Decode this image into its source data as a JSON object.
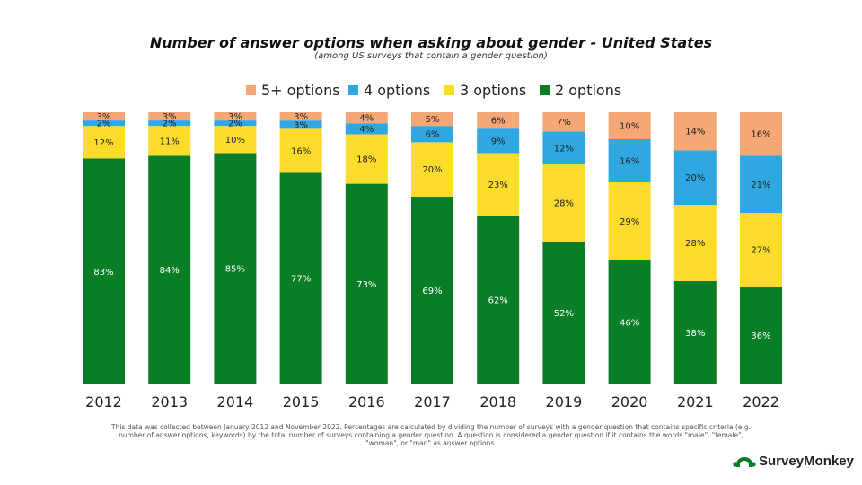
{
  "title": "Number of answer options when asking about gender - United States",
  "subtitle": "(among US surveys that contain a gender question)",
  "footnote": "This data was collected between January 2012 and November 2022. Percentages are calculated by dividing the number of surveys with a gender question that contains specific criteria (e.g. number of answer options, keywords) by the total number of surveys containing a gender question. A question is considered a gender question if it contains the words \"male\", \"female\", \"woman\", or \"man\" as answer options.",
  "brand": "SurveyMonkey",
  "colors": {
    "2 options": "#0a7d27",
    "3 options": "#fbdc2c",
    "4 options": "#2fa8e1",
    "5+ options": "#f5a775"
  },
  "chart_data": {
    "type": "bar",
    "stacked": true,
    "legend_position": "top",
    "grid": false,
    "ylim": [
      0,
      100
    ],
    "categories": [
      "2012",
      "2013",
      "2014",
      "2015",
      "2016",
      "2017",
      "2018",
      "2019",
      "2020",
      "2021",
      "2022"
    ],
    "series": [
      {
        "name": "2 options",
        "values": [
          83,
          84,
          85,
          77,
          73,
          69,
          62,
          52,
          46,
          38,
          36
        ]
      },
      {
        "name": "3 options",
        "values": [
          12,
          11,
          10,
          16,
          18,
          20,
          23,
          28,
          29,
          28,
          27
        ]
      },
      {
        "name": "4 options",
        "values": [
          2,
          2,
          2,
          3,
          4,
          6,
          9,
          12,
          16,
          20,
          21
        ]
      },
      {
        "name": "5+ options",
        "values": [
          3,
          3,
          3,
          3,
          4,
          5,
          6,
          7,
          10,
          14,
          16
        ]
      }
    ],
    "legend_order": [
      "5+ options",
      "4 options",
      "3 options",
      "2 options"
    ],
    "value_suffix": "%"
  }
}
